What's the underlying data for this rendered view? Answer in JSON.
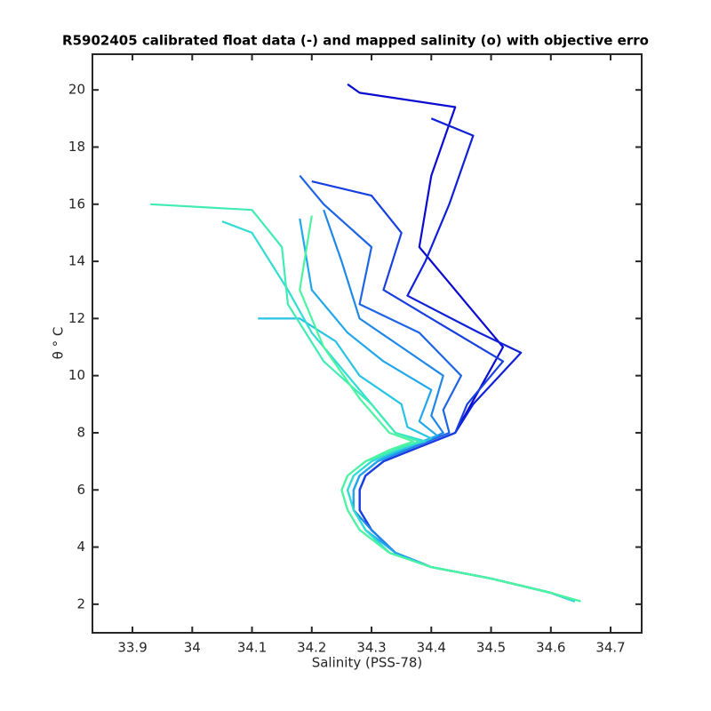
{
  "chart_data": {
    "type": "line",
    "title": "R5902405 calibrated float data (-) and mapped salinity (o) with objective erro",
    "xlabel": "Salinity (PSS-78)",
    "ylabel": "θ ° C",
    "xlim": [
      33.833,
      34.752
    ],
    "ylim": [
      1.0,
      21.25
    ],
    "xticks": [
      33.9,
      34,
      34.1,
      34.2,
      34.3,
      34.4,
      34.5,
      34.6,
      34.7
    ],
    "yticks": [
      2,
      4,
      6,
      8,
      10,
      12,
      14,
      16,
      18,
      20
    ],
    "grid": false,
    "series": [
      {
        "color": "#0a0ad0",
        "x": [
          34.26,
          34.28,
          34.44,
          34.4,
          34.38,
          34.46,
          34.52,
          34.48,
          34.44,
          34.38,
          34.32,
          34.29,
          34.28,
          34.28,
          34.3,
          34.34,
          34.4,
          34.5,
          34.6,
          34.64
        ],
        "values": [
          20.2,
          19.9,
          19.4,
          17.0,
          14.5,
          12.5,
          11.0,
          9.5,
          8.0,
          7.5,
          7.0,
          6.5,
          6.0,
          5.3,
          4.6,
          3.8,
          3.3,
          2.9,
          2.4,
          2.1
        ]
      },
      {
        "color": "#1020d8",
        "x": [
          34.4,
          34.47,
          34.43,
          34.39,
          34.36,
          34.48,
          34.55,
          34.47,
          34.44,
          34.38,
          34.32,
          34.29,
          34.28,
          34.28,
          34.3,
          34.34,
          34.4,
          34.5,
          34.6,
          34.64
        ],
        "values": [
          19.0,
          18.4,
          16.0,
          14.0,
          12.8,
          11.5,
          10.8,
          9.0,
          8.0,
          7.5,
          7.0,
          6.5,
          6.0,
          5.3,
          4.6,
          3.8,
          3.3,
          2.9,
          2.4,
          2.1
        ]
      },
      {
        "color": "#1840e0",
        "x": [
          34.2,
          34.3,
          34.35,
          34.32,
          34.4,
          34.52,
          34.46,
          34.44,
          34.38,
          34.32,
          34.29,
          34.28,
          34.28,
          34.3,
          34.34,
          34.4,
          34.5,
          34.6,
          34.64
        ],
        "values": [
          16.8,
          16.3,
          15.0,
          13.0,
          12.0,
          10.5,
          9.0,
          8.0,
          7.5,
          7.0,
          6.5,
          6.0,
          5.3,
          4.6,
          3.8,
          3.3,
          2.9,
          2.4,
          2.1
        ]
      },
      {
        "color": "#1e64e6",
        "x": [
          34.18,
          34.22,
          34.3,
          34.28,
          34.38,
          34.45,
          34.42,
          34.43,
          34.37,
          34.31,
          34.28,
          34.27,
          34.27,
          34.3,
          34.34,
          34.4,
          34.5,
          34.6,
          34.64
        ],
        "values": [
          17.0,
          16.0,
          14.5,
          12.5,
          11.5,
          10.0,
          8.8,
          8.0,
          7.5,
          7.0,
          6.5,
          6.0,
          5.3,
          4.6,
          3.8,
          3.3,
          2.9,
          2.4,
          2.1
        ]
      },
      {
        "color": "#1e88e8",
        "x": [
          34.22,
          34.25,
          34.28,
          34.35,
          34.42,
          34.4,
          34.42,
          34.37,
          34.31,
          34.28,
          34.27,
          34.27,
          34.3,
          34.34,
          34.4,
          34.5,
          34.6,
          34.64
        ],
        "values": [
          15.8,
          14.0,
          12.0,
          11.0,
          10.0,
          8.6,
          8.0,
          7.5,
          7.0,
          6.5,
          6.0,
          5.3,
          4.6,
          3.8,
          3.3,
          2.9,
          2.4,
          2.1
        ]
      },
      {
        "color": "#22a8ea",
        "x": [
          34.18,
          34.2,
          34.26,
          34.32,
          34.4,
          34.38,
          34.41,
          34.36,
          34.31,
          34.28,
          34.27,
          34.27,
          34.29,
          34.34,
          34.4,
          34.5,
          34.6,
          34.64
        ],
        "values": [
          15.5,
          13.0,
          11.5,
          10.5,
          9.5,
          8.4,
          7.9,
          7.5,
          7.0,
          6.5,
          6.0,
          5.3,
          4.6,
          3.8,
          3.3,
          2.9,
          2.4,
          2.1
        ]
      },
      {
        "color": "#28c4e4",
        "x": [
          34.11,
          34.18,
          34.24,
          34.28,
          34.35,
          34.36,
          34.4,
          34.36,
          34.3,
          34.27,
          34.26,
          34.27,
          34.29,
          34.33,
          34.4,
          34.5,
          34.6,
          34.64
        ],
        "values": [
          12.0,
          12.0,
          11.2,
          10.0,
          9.0,
          8.2,
          7.8,
          7.5,
          7.0,
          6.5,
          6.0,
          5.3,
          4.6,
          3.8,
          3.3,
          2.9,
          2.4,
          2.1
        ]
      },
      {
        "color": "#30dcd4",
        "x": [
          34.05,
          34.1,
          34.16,
          34.2,
          34.28,
          34.34,
          34.39,
          34.35,
          34.3,
          34.27,
          34.26,
          34.27,
          34.29,
          34.33,
          34.4,
          34.5,
          34.6,
          34.64
        ],
        "values": [
          15.4,
          15.0,
          13.0,
          11.5,
          9.5,
          8.0,
          7.7,
          7.5,
          7.0,
          6.5,
          6.0,
          5.3,
          4.6,
          3.8,
          3.3,
          2.9,
          2.4,
          2.1
        ]
      },
      {
        "color": "#40ecb4",
        "x": [
          33.93,
          34.1,
          34.15,
          34.16,
          34.22,
          34.3,
          34.34,
          34.38,
          34.34,
          34.29,
          34.26,
          34.25,
          34.26,
          34.28,
          34.33,
          34.4,
          34.5,
          34.6,
          34.65
        ],
        "values": [
          16.0,
          15.8,
          14.5,
          12.5,
          10.5,
          9.0,
          8.0,
          7.7,
          7.4,
          7.0,
          6.5,
          6.0,
          5.3,
          4.6,
          3.8,
          3.3,
          2.9,
          2.4,
          2.1
        ]
      },
      {
        "color": "#4cf4a0",
        "x": [
          34.2,
          34.18,
          34.22,
          34.28,
          34.33,
          34.37,
          34.33,
          34.29,
          34.26,
          34.25,
          34.26,
          34.28,
          34.33,
          34.4,
          34.5,
          34.6,
          34.65
        ],
        "values": [
          15.6,
          13.0,
          11.0,
          9.2,
          8.0,
          7.7,
          7.4,
          7.0,
          6.5,
          6.0,
          5.3,
          4.6,
          3.8,
          3.3,
          2.9,
          2.4,
          2.1
        ]
      }
    ]
  }
}
